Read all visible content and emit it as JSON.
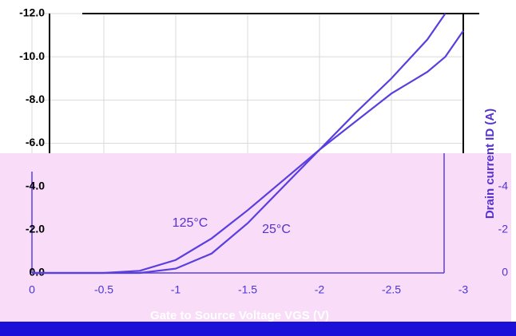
{
  "chart_data": {
    "type": "line",
    "x_label": "Gate to Source Voltage VGS (V)",
    "y_label": "Drain current ID (A)",
    "x": [
      0,
      -0.25,
      -0.5,
      -0.75,
      -1,
      -1.25,
      -1.5,
      -1.75,
      -2,
      -2.25,
      -2.5,
      -2.75,
      -2.875,
      -3
    ],
    "series": [
      {
        "name": "125°C",
        "color": "#5a3fe0",
        "values": [
          0,
          0,
          0,
          -0.1,
          -0.6,
          -1.6,
          -2.9,
          -4.3,
          -5.7,
          -7.0,
          -8.3,
          -9.3,
          -10.0,
          -11.2
        ]
      },
      {
        "name": "25°C",
        "color": "#5a3fe0",
        "values": [
          0,
          0,
          0,
          0,
          -0.2,
          -0.9,
          -2.3,
          -4.0,
          -5.7,
          -7.4,
          -9.0,
          -10.8,
          -12.0,
          null
        ]
      }
    ],
    "xlim": [
      0,
      -3
    ],
    "xticks": [
      0,
      -0.5,
      -1,
      -1.5,
      -2,
      -2.5,
      -3
    ],
    "ylim": [
      0,
      -12
    ],
    "yticks": [
      {
        "value": -12,
        "label": "-12.0"
      },
      {
        "value": -10,
        "label": "-10.0"
      },
      {
        "value": -8,
        "label": "-8.0"
      },
      {
        "value": -6,
        "label": "-6.0"
      },
      {
        "value": -4,
        "label": "-4.0"
      },
      {
        "value": -2,
        "label": "-2.0"
      },
      {
        "value": 0,
        "label": "0.0"
      }
    ],
    "y2lim": [
      0,
      -12
    ],
    "y2ticks": [
      -4,
      -2,
      0
    ],
    "grid": true
  }
}
